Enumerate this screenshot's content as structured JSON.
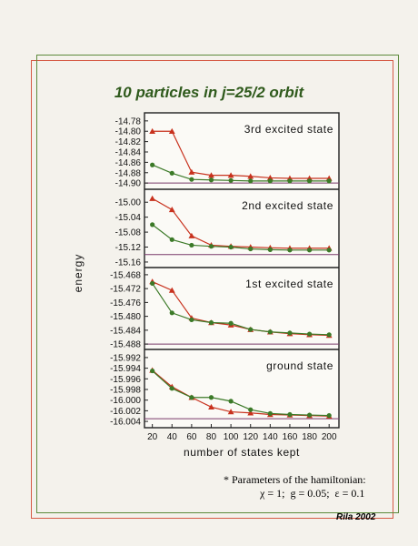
{
  "title": "10 particles in j=25/2 orbit",
  "footnote": {
    "line1": "* Parameters of the hamiltonian:",
    "chi": "χ = 1;",
    "g": "g = 0.05;",
    "eps": "ε = 0.1"
  },
  "footer": "Rila 2002",
  "colors": {
    "red": "#c8321e",
    "green": "#3c7a28",
    "axis": "#222222"
  },
  "chart_data": {
    "type": "line",
    "ylabel": "energy",
    "xlabel": "number of states kept",
    "x": [
      20,
      40,
      60,
      80,
      100,
      120,
      140,
      160,
      180,
      200
    ],
    "x_tick_labels": [
      "20",
      "40",
      "60",
      "80",
      "100",
      "120",
      "140",
      "160",
      "180",
      "200"
    ],
    "panels": [
      {
        "label": "3rd excited state",
        "ylim": [
          -14.905,
          -14.775
        ],
        "y_ticks": [
          "-14.78",
          "-14.80",
          "-14.82",
          "-14.84",
          "-14.86",
          "-14.88",
          "-14.90"
        ],
        "y_tick_values": [
          -14.78,
          -14.8,
          -14.82,
          -14.84,
          -14.86,
          -14.88,
          -14.9
        ],
        "ref_line": -14.9,
        "series": [
          {
            "color": "red",
            "marker": "triangle",
            "values": [
              -14.8,
              -14.8,
              -14.879,
              -14.885,
              -14.885,
              -14.887,
              -14.89,
              -14.891,
              -14.891,
              -14.891
            ]
          },
          {
            "color": "green",
            "marker": "circle",
            "values": [
              -14.865,
              -14.881,
              -14.893,
              -14.894,
              -14.895,
              -14.896,
              -14.896,
              -14.896,
              -14.896,
              -14.896
            ]
          }
        ]
      },
      {
        "label": "2nd excited state",
        "ylim": [
          -15.165,
          -14.98
        ],
        "y_ticks": [
          "-15.00",
          "-15.04",
          "-15.08",
          "-15.12",
          "-15.16"
        ],
        "y_tick_values": [
          -15.0,
          -15.04,
          -15.08,
          -15.12,
          -15.16
        ],
        "ref_line": -15.14,
        "series": [
          {
            "color": "red",
            "marker": "triangle",
            "values": [
              -14.99,
              -15.02,
              -15.09,
              -15.115,
              -15.118,
              -15.12,
              -15.122,
              -15.123,
              -15.123,
              -15.123
            ]
          },
          {
            "color": "green",
            "marker": "circle",
            "values": [
              -15.06,
              -15.1,
              -15.115,
              -15.118,
              -15.12,
              -15.125,
              -15.127,
              -15.128,
              -15.128,
              -15.128
            ]
          }
        ]
      },
      {
        "label": "1st excited state",
        "ylim": [
          -15.4885,
          -15.4675
        ],
        "y_ticks": [
          "-15.468",
          "-15.472",
          "-15.476",
          "-15.480",
          "-15.484",
          "-15.488"
        ],
        "y_tick_values": [
          -15.468,
          -15.472,
          -15.476,
          -15.48,
          -15.484,
          -15.488
        ],
        "ref_line": -15.488,
        "series": [
          {
            "color": "red",
            "marker": "triangle",
            "values": [
              -15.47,
              -15.4725,
              -15.4805,
              -15.4818,
              -15.4825,
              -15.4838,
              -15.4845,
              -15.485,
              -15.4853,
              -15.4855
            ]
          },
          {
            "color": "green",
            "marker": "circle",
            "values": [
              -15.4705,
              -15.479,
              -15.481,
              -15.4818,
              -15.482,
              -15.4838,
              -15.4845,
              -15.4848,
              -15.4851,
              -15.4853
            ]
          }
        ]
      },
      {
        "label": "ground state",
        "ylim": [
          -16.0045,
          -15.9915
        ],
        "y_ticks": [
          "-15.992",
          "-15.994",
          "-15.996",
          "-15.998",
          "-16.000",
          "-16.002",
          "-16.004"
        ],
        "y_tick_values": [
          -15.992,
          -15.994,
          -15.996,
          -15.998,
          -16.0,
          -16.002,
          -16.004
        ],
        "ref_line": -16.0035,
        "series": [
          {
            "color": "red",
            "marker": "triangle",
            "values": [
              -15.9944,
              -15.9975,
              -15.9995,
              -16.0013,
              -16.0022,
              -16.0024,
              -16.0027,
              -16.0028,
              -16.0029,
              -16.003
            ]
          },
          {
            "color": "green",
            "marker": "circle",
            "values": [
              -15.9945,
              -15.9978,
              -15.9995,
              -15.9995,
              -16.0002,
              -16.0018,
              -16.0025,
              -16.0027,
              -16.0028,
              -16.0029
            ]
          }
        ]
      }
    ]
  }
}
